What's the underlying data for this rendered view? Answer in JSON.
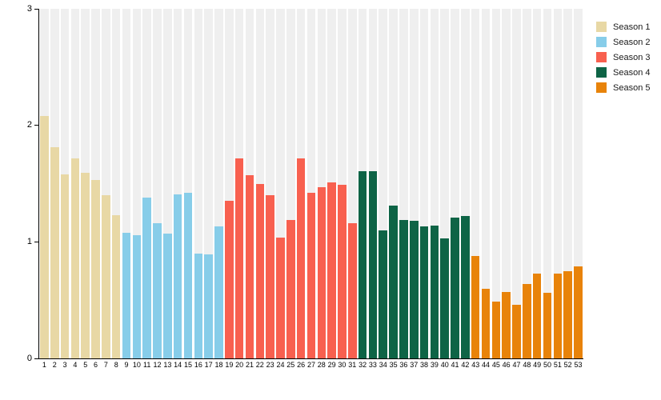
{
  "chart_data": {
    "type": "bar",
    "title": "",
    "xlabel": "",
    "ylabel": "",
    "ylim": [
      0,
      3
    ],
    "y_ticks": [
      0,
      1,
      2,
      3
    ],
    "grid": "vertical-stripes",
    "stripe_color": "#efefef",
    "legend_position": "top-right",
    "x": [
      1,
      2,
      3,
      4,
      5,
      6,
      7,
      8,
      9,
      10,
      11,
      12,
      13,
      14,
      15,
      16,
      17,
      18,
      19,
      20,
      21,
      22,
      23,
      24,
      25,
      26,
      27,
      28,
      29,
      30,
      31,
      32,
      33,
      34,
      35,
      36,
      37,
      38,
      39,
      40,
      41,
      42,
      43,
      44,
      45,
      46,
      47,
      48,
      49,
      50,
      51,
      52,
      53
    ],
    "series": [
      {
        "name": "Season 1",
        "color": "#e8d8a5",
        "values": [
          2.08,
          1.81,
          1.58,
          1.72,
          1.59,
          1.53,
          1.4,
          1.23
        ]
      },
      {
        "name": "Season 2",
        "color": "#87cde9",
        "values": [
          1.08,
          1.06,
          1.38,
          1.16,
          1.07,
          1.41,
          1.42,
          0.9,
          0.89,
          1.13
        ]
      },
      {
        "name": "Season 3",
        "color": "#f8604f",
        "values": [
          1.35,
          1.72,
          1.57,
          1.5,
          1.4,
          1.04,
          1.19,
          1.72,
          1.42,
          1.47,
          1.51,
          1.49,
          1.16
        ]
      },
      {
        "name": "Season 4",
        "color": "#0e6446",
        "values": [
          1.61,
          1.61,
          1.1,
          1.31,
          1.19,
          1.18,
          1.13,
          1.14,
          1.03,
          1.21,
          1.22
        ]
      },
      {
        "name": "Season 5",
        "color": "#e8830a",
        "values": [
          0.88,
          0.6,
          0.49,
          0.57,
          0.46,
          0.64,
          0.73,
          0.56,
          0.73,
          0.75,
          0.79
        ]
      }
    ]
  },
  "legend": {
    "items": [
      {
        "label": "Season 1",
        "color": "#e8d8a5"
      },
      {
        "label": "Season 2",
        "color": "#87cde9"
      },
      {
        "label": "Season 3",
        "color": "#f8604f"
      },
      {
        "label": "Season 4",
        "color": "#0e6446"
      },
      {
        "label": "Season 5",
        "color": "#e8830a"
      }
    ]
  }
}
